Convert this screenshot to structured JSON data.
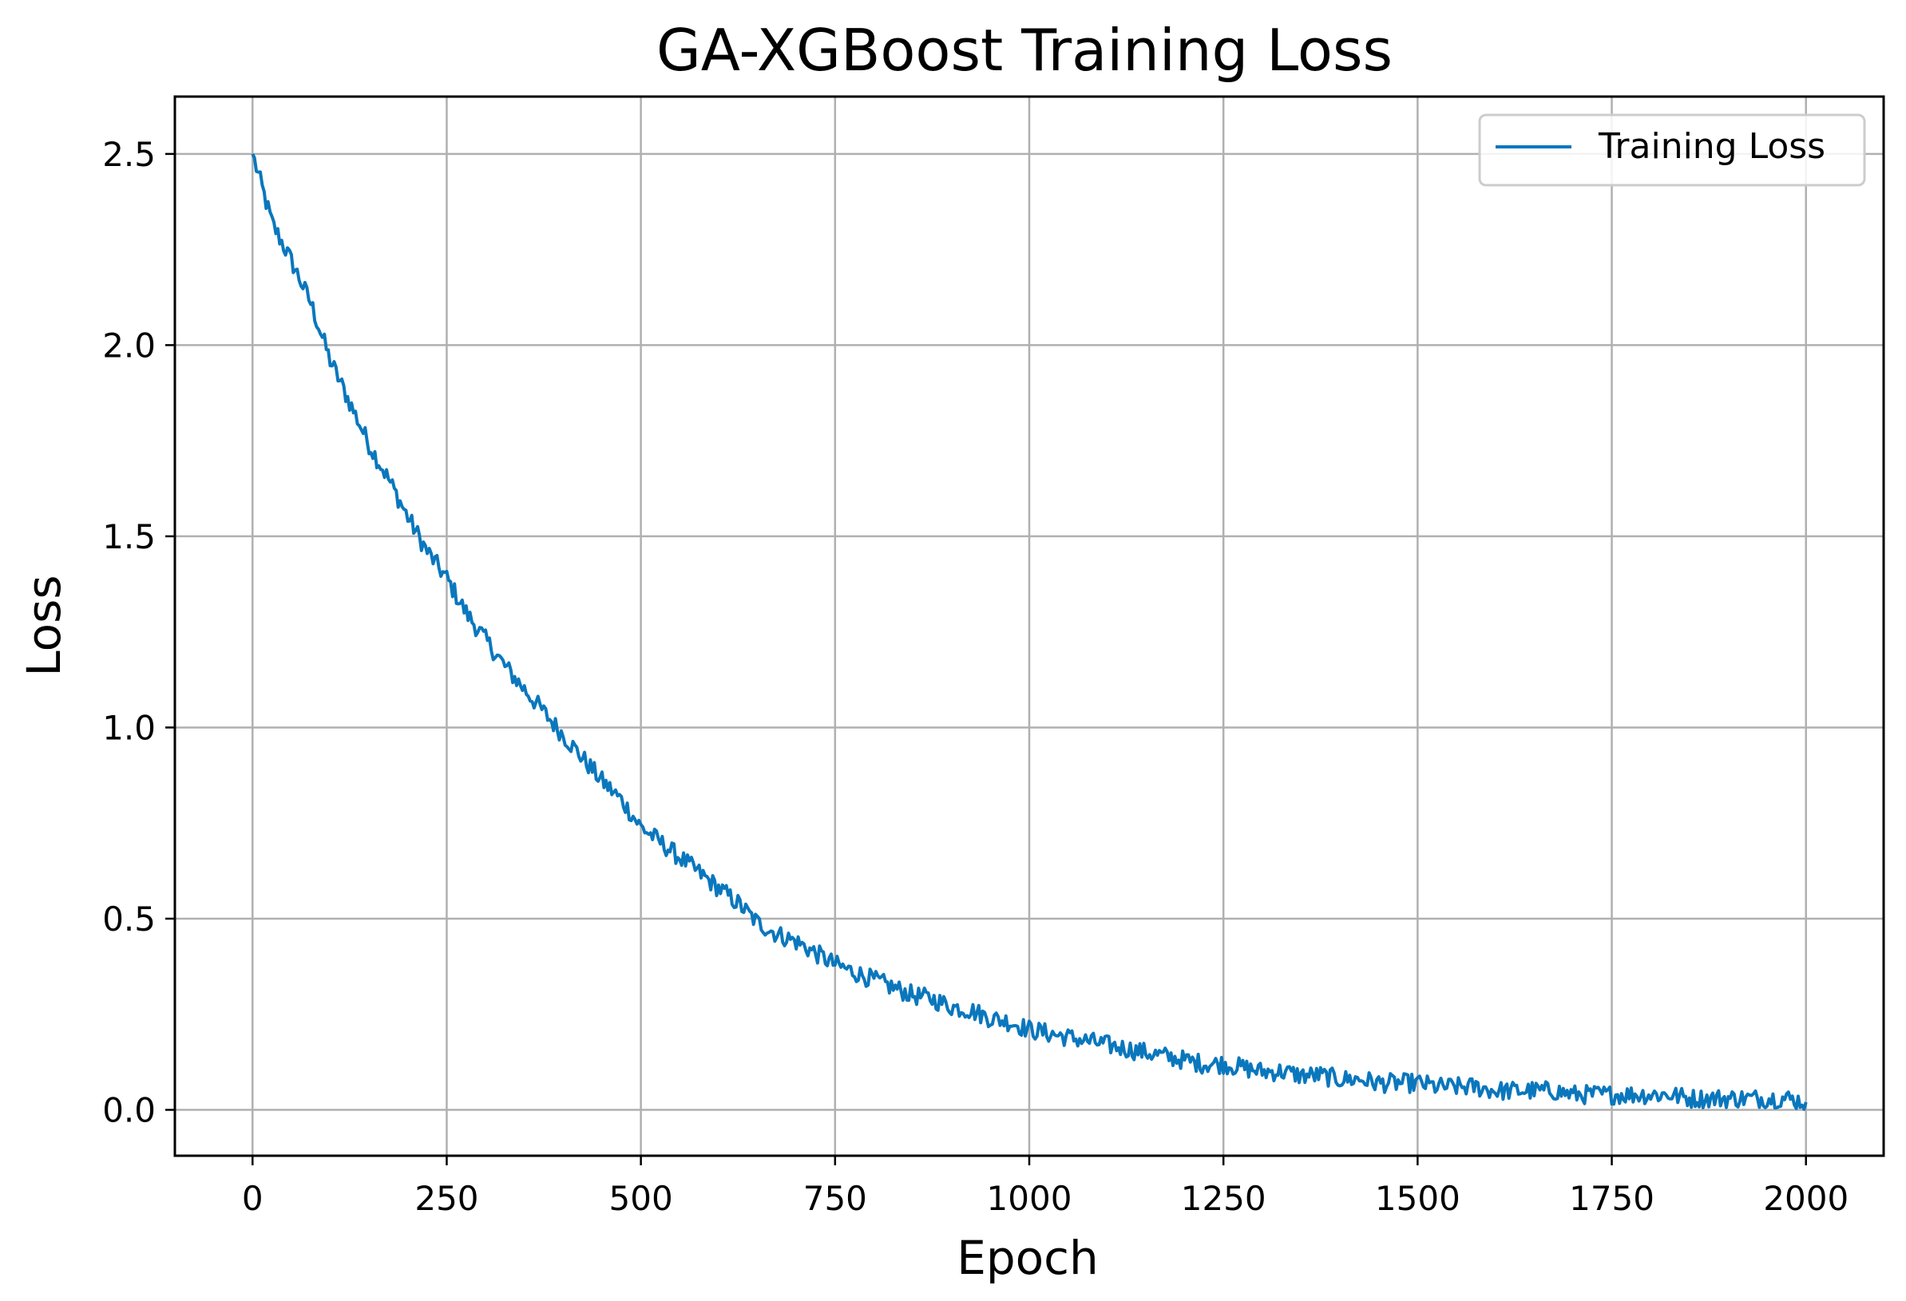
{
  "chart_data": {
    "type": "line",
    "title": "GA-XGBoost Training Loss",
    "xlabel": "Epoch",
    "ylabel": "Loss",
    "xlim": [
      -100,
      2100
    ],
    "ylim": [
      -0.12,
      2.65
    ],
    "x_ticks": [
      0,
      250,
      500,
      750,
      1000,
      1250,
      1500,
      1750,
      2000
    ],
    "x_tick_labels": [
      "0",
      "250",
      "500",
      "750",
      "1000",
      "1250",
      "1500",
      "1750",
      "2000"
    ],
    "y_ticks": [
      0.0,
      0.5,
      1.0,
      1.5,
      2.0,
      2.5
    ],
    "y_tick_labels": [
      "0.0",
      "0.5",
      "1.0",
      "1.5",
      "2.0",
      "2.5"
    ],
    "grid": true,
    "legend_position": "top-right",
    "series": [
      {
        "name": "Training Loss",
        "color": "#0a77bd",
        "x": [
          0,
          25,
          50,
          75,
          100,
          125,
          150,
          175,
          200,
          225,
          250,
          275,
          300,
          325,
          350,
          375,
          400,
          425,
          450,
          475,
          500,
          525,
          550,
          575,
          600,
          625,
          650,
          675,
          700,
          725,
          750,
          775,
          800,
          825,
          850,
          875,
          900,
          925,
          950,
          975,
          1000,
          1025,
          1050,
          1075,
          1100,
          1125,
          1150,
          1175,
          1200,
          1225,
          1250,
          1275,
          1300,
          1325,
          1350,
          1375,
          1400,
          1425,
          1450,
          1475,
          1500,
          1525,
          1550,
          1575,
          1600,
          1625,
          1650,
          1675,
          1700,
          1725,
          1750,
          1775,
          1800,
          1825,
          1850,
          1875,
          1900,
          1925,
          1950,
          1975,
          2000
        ],
        "y": [
          2.5,
          2.32,
          2.22,
          2.11,
          1.96,
          1.85,
          1.74,
          1.65,
          1.55,
          1.46,
          1.39,
          1.3,
          1.23,
          1.16,
          1.1,
          1.04,
          0.98,
          0.92,
          0.86,
          0.81,
          0.74,
          0.7,
          0.66,
          0.62,
          0.58,
          0.54,
          0.49,
          0.46,
          0.44,
          0.41,
          0.38,
          0.36,
          0.34,
          0.32,
          0.3,
          0.29,
          0.27,
          0.26,
          0.24,
          0.23,
          0.21,
          0.2,
          0.19,
          0.18,
          0.17,
          0.16,
          0.15,
          0.14,
          0.13,
          0.12,
          0.12,
          0.11,
          0.1,
          0.1,
          0.09,
          0.09,
          0.08,
          0.08,
          0.07,
          0.07,
          0.07,
          0.06,
          0.06,
          0.06,
          0.05,
          0.05,
          0.05,
          0.05,
          0.04,
          0.04,
          0.04,
          0.04,
          0.04,
          0.04,
          0.03,
          0.03,
          0.03,
          0.03,
          0.03,
          0.03,
          0.02
        ]
      }
    ]
  }
}
